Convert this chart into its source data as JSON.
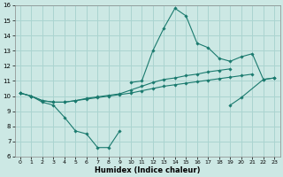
{
  "xlabel": "Humidex (Indice chaleur)",
  "bg_color": "#cce8e4",
  "line_color": "#1a7a6e",
  "grid_color": "#aad4d0",
  "xlim": [
    -0.5,
    23.5
  ],
  "ylim": [
    6,
    16
  ],
  "xticks": [
    0,
    1,
    2,
    3,
    4,
    5,
    6,
    7,
    8,
    9,
    10,
    11,
    12,
    13,
    14,
    15,
    16,
    17,
    18,
    19,
    20,
    21,
    22,
    23
  ],
  "yticks": [
    6,
    7,
    8,
    9,
    10,
    11,
    12,
    13,
    14,
    15,
    16
  ],
  "series": [
    {
      "x": [
        0,
        1,
        2,
        3,
        4,
        5,
        6,
        7,
        8,
        9
      ],
      "y": [
        10.2,
        10.0,
        9.6,
        9.4,
        8.6,
        7.7,
        7.5,
        6.6,
        6.6,
        7.7
      ]
    },
    {
      "x": [
        19,
        20,
        22,
        23
      ],
      "y": [
        9.4,
        9.9,
        11.1,
        11.2
      ]
    },
    {
      "x": [
        0,
        1,
        2,
        3,
        4,
        5,
        6,
        7,
        8,
        9,
        10,
        11,
        12,
        13,
        14,
        15,
        16,
        17,
        18,
        19,
        20,
        21
      ],
      "y": [
        10.2,
        10.0,
        9.7,
        9.6,
        9.6,
        9.7,
        9.8,
        9.9,
        10.0,
        10.1,
        10.2,
        10.35,
        10.5,
        10.65,
        10.75,
        10.85,
        10.95,
        11.05,
        11.15,
        11.25,
        11.35,
        11.45
      ]
    },
    {
      "x": [
        0,
        1,
        2,
        3,
        4,
        5,
        6,
        7,
        8,
        9,
        10,
        11,
        12,
        13,
        14,
        15,
        16,
        17,
        18,
        19
      ],
      "y": [
        10.2,
        10.0,
        9.7,
        9.6,
        9.6,
        9.7,
        9.85,
        9.95,
        10.05,
        10.15,
        10.4,
        10.65,
        10.9,
        11.1,
        11.2,
        11.35,
        11.45,
        11.6,
        11.7,
        11.8
      ]
    },
    {
      "x": [
        10,
        11,
        12,
        13,
        14,
        15,
        16,
        17,
        18,
        19,
        20,
        21,
        22,
        23
      ],
      "y": [
        10.9,
        11.0,
        13.0,
        14.5,
        15.8,
        15.3,
        13.5,
        13.2,
        12.5,
        12.3,
        12.6,
        12.8,
        11.1,
        11.2
      ]
    }
  ]
}
